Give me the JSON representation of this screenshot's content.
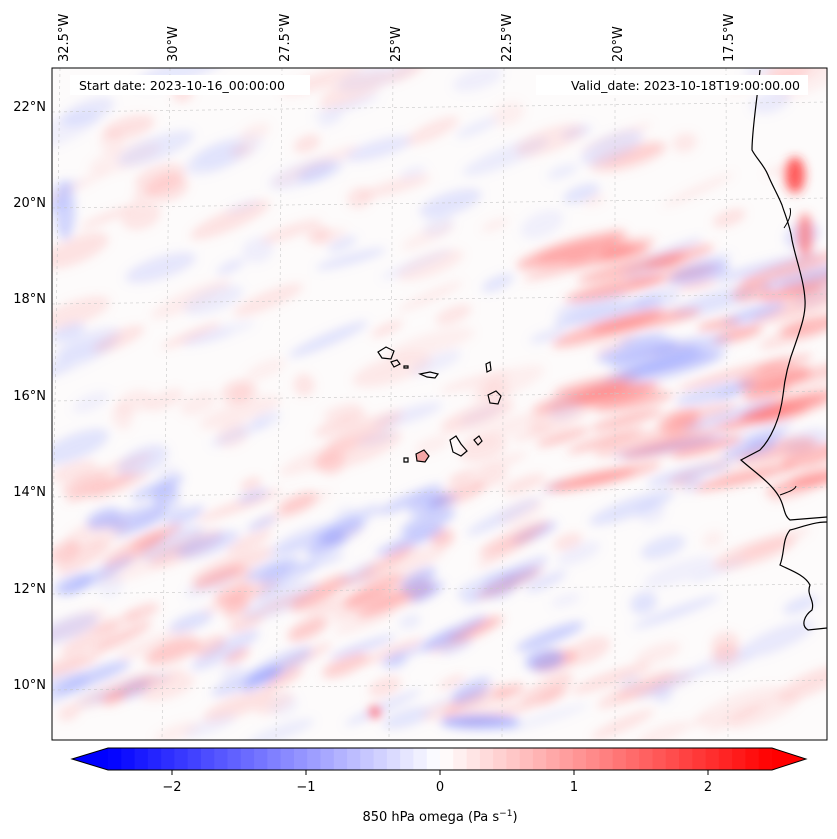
{
  "header": {
    "start_label": "Start date: 2023-10-16_00:00:00",
    "valid_label": "Valid_date: 2023-10-18T19:00:00.00"
  },
  "map": {
    "lon_labels": [
      "32.5°W",
      "30°W",
      "27.5°W",
      "25°W",
      "22.5°W",
      "20°W",
      "17.5°W"
    ],
    "lat_labels": [
      "22°N",
      "20°N",
      "18°N",
      "16°N",
      "14°N",
      "12°N",
      "10°N"
    ],
    "gridlines": true,
    "colormap": "bwr",
    "features": [
      "Cape Verde islands",
      "West African coastline"
    ]
  },
  "colorbar": {
    "label_text": "850 hPa omega (Pa s",
    "label_exponent": "−1",
    "label_close": ")",
    "ticks": [
      "−2",
      "−1",
      "0",
      "1",
      "2"
    ],
    "tick_values": [
      -2,
      -1,
      0,
      1,
      2
    ],
    "range": [
      -2.6,
      2.6
    ],
    "extend": "both",
    "low_color": "#0000ff",
    "mid_color": "#ffffff",
    "high_color": "#ff0000"
  }
}
